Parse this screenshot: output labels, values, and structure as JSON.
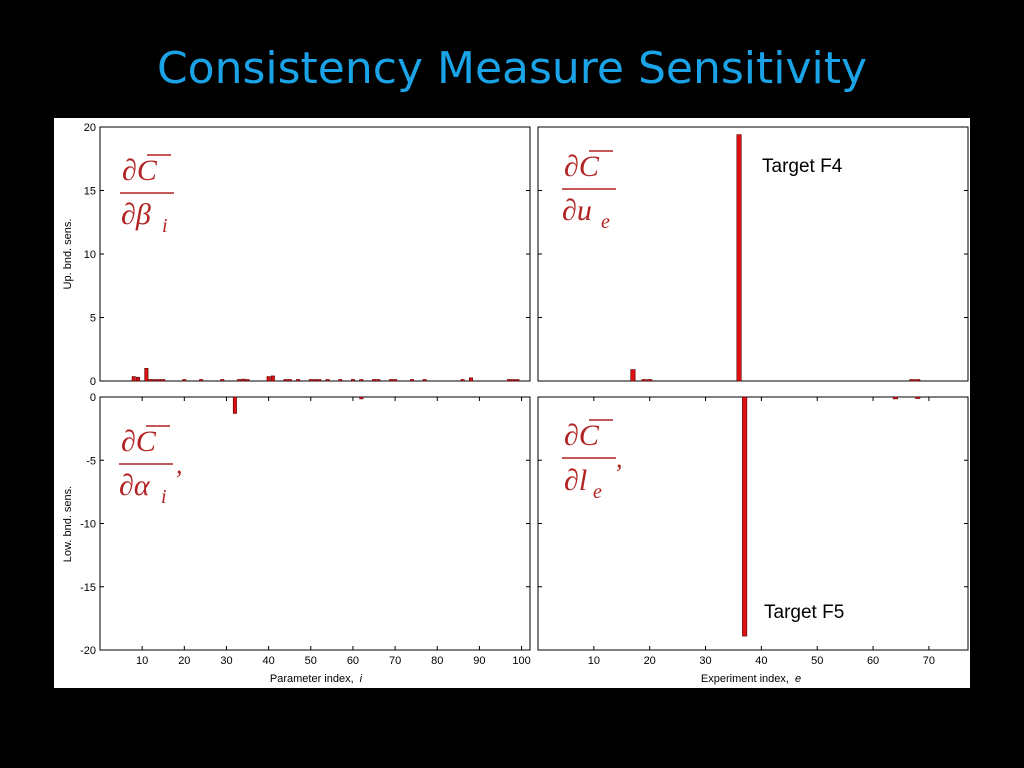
{
  "slide": {
    "title": "Consistency Measure Sensitivity"
  },
  "colors": {
    "title": "#1aa3e6",
    "bar_fill": "#dd1111",
    "bar_stroke": "#550000",
    "formula": "#b22222"
  },
  "formulas": {
    "tl": {
      "numerator": "∂C",
      "denominator": "∂β",
      "subscript": "i",
      "suffix": ""
    },
    "tr": {
      "numerator": "∂C",
      "denominator": "∂u",
      "subscript": "e",
      "suffix": ""
    },
    "bl": {
      "numerator": "∂C",
      "denominator": "∂α",
      "subscript": "i",
      "suffix": ","
    },
    "br": {
      "numerator": "∂C",
      "denominator": "∂l",
      "subscript": "e",
      "suffix": ","
    }
  },
  "annotations": {
    "tr": "Target F4",
    "br": "Target F5"
  },
  "labels": {
    "y_top": "Up. bnd. sens.",
    "y_bottom": "Low. bnd. sens.",
    "x_left_text": "Parameter index,",
    "x_left_var": "i",
    "x_right_text": "Experiment index,",
    "x_right_var": "e"
  },
  "chart_data": [
    {
      "id": "upper-parameter",
      "type": "bar",
      "xlim": [
        0,
        102
      ],
      "ylim": [
        0,
        20
      ],
      "yticks": [
        0,
        5,
        10,
        15,
        20
      ],
      "ylabel": "Up. bnd. sens.",
      "x": [
        8,
        9,
        11,
        12,
        13,
        14,
        15,
        20,
        24,
        29,
        33,
        34,
        35,
        40,
        41,
        44,
        45,
        47,
        50,
        51,
        52,
        54,
        57,
        60,
        62,
        65,
        66,
        69,
        70,
        74,
        77,
        86,
        88,
        97,
        98,
        99
      ],
      "values": [
        0.35,
        0.3,
        1.0,
        0.12,
        0.1,
        0.08,
        0.06,
        0.05,
        0.05,
        0.05,
        0.1,
        0.15,
        0.08,
        0.35,
        0.4,
        0.08,
        0.08,
        0.06,
        0.05,
        0.05,
        0.05,
        0.05,
        0.05,
        0.05,
        0.05,
        0.05,
        0.05,
        0.05,
        0.05,
        0.05,
        0.05,
        0.08,
        0.25,
        0.05,
        0.05,
        0.05
      ]
    },
    {
      "id": "upper-experiment",
      "type": "bar",
      "xlim": [
        0,
        77
      ],
      "ylim": [
        0,
        20
      ],
      "yticks": [
        0,
        5,
        10,
        15,
        20
      ],
      "x": [
        17,
        19,
        20,
        36,
        67,
        68
      ],
      "values": [
        0.9,
        0.08,
        0.05,
        19.4,
        0.1,
        0.08
      ]
    },
    {
      "id": "lower-parameter",
      "type": "bar",
      "xlim": [
        0,
        102
      ],
      "ylim": [
        -20,
        0
      ],
      "yticks": [
        0,
        -5,
        -10,
        -15,
        -20
      ],
      "xticks": [
        10,
        20,
        30,
        40,
        50,
        60,
        70,
        80,
        90,
        100
      ],
      "ylabel": "Low. bnd. sens.",
      "xlabel": "Parameter index, i",
      "x": [
        32,
        62
      ],
      "values": [
        -1.3,
        -0.15
      ]
    },
    {
      "id": "lower-experiment",
      "type": "bar",
      "xlim": [
        0,
        77
      ],
      "ylim": [
        -20,
        0
      ],
      "yticks": [
        0,
        -5,
        -10,
        -15,
        -20
      ],
      "xticks": [
        10,
        20,
        30,
        40,
        50,
        60,
        70
      ],
      "xlabel": "Experiment index, e",
      "x": [
        37,
        64,
        68
      ],
      "values": [
        -18.9,
        -0.15,
        -0.08
      ]
    }
  ]
}
